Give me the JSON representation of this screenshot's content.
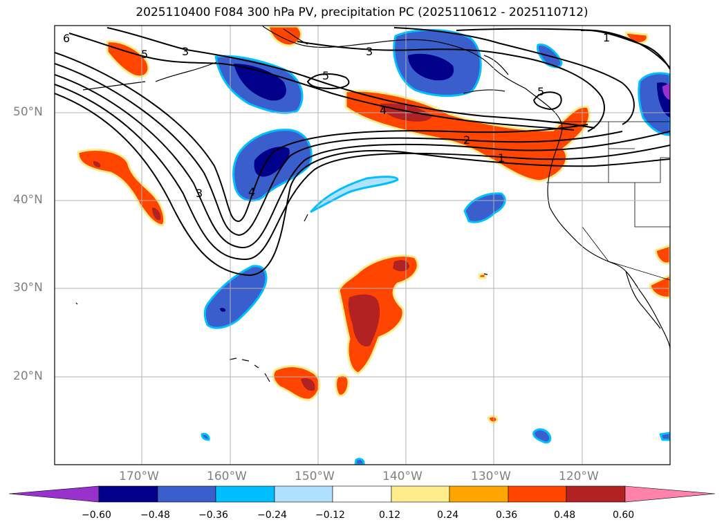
{
  "title": "2025110400 F084 300 hPa PV, precipitation PC (2025110612 - 2025110712)",
  "colors": {
    "neg060": "#9932cc",
    "neg048": "#00008b",
    "neg036": "#3a5fcd",
    "neg024": "#00bfff",
    "neg012": "#b0e2ff",
    "zero": "#ffffff",
    "pos012": "#ffec8b",
    "pos024": "#ffa500",
    "pos036": "#ff4500",
    "pos048": "#b22222",
    "pos060": "#ff82ab",
    "grid": "#b0b0b0",
    "contour": "#000000",
    "label": "#808080"
  },
  "map": {
    "lon_range": [
      -180,
      -110
    ],
    "lat_range": [
      10,
      60
    ],
    "lat_labels": [
      "50°N",
      "40°N",
      "30°N",
      "20°N"
    ],
    "lon_labels": [
      "170°W",
      "160°W",
      "150°W",
      "140°W",
      "130°W",
      "120°W"
    ],
    "contour_labels": [
      "6",
      "5",
      "3",
      "3",
      "5",
      "4",
      "2",
      "1",
      "5",
      "1",
      "3",
      "4"
    ]
  },
  "colorbar": {
    "ticks": [
      "−0.60",
      "−0.48",
      "−0.36",
      "−0.24",
      "−0.12",
      "0.12",
      "0.24",
      "0.36",
      "0.48",
      "0.60"
    ]
  }
}
